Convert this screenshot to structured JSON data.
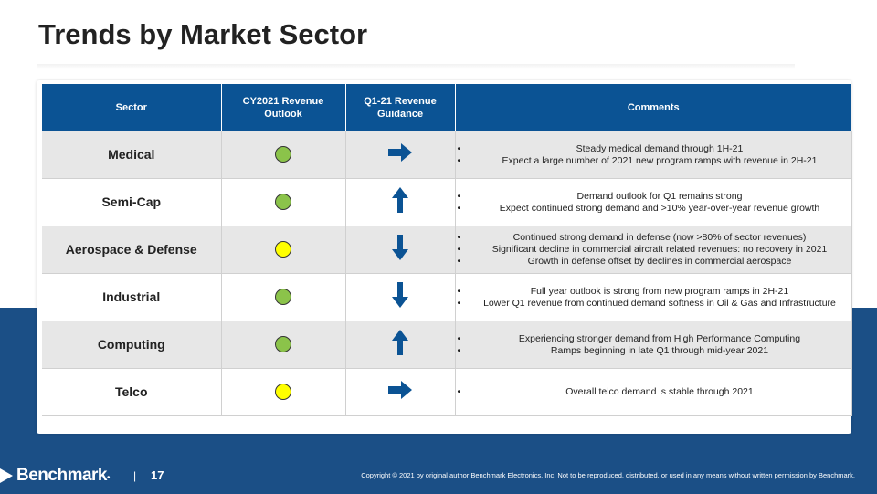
{
  "title": "Trends by Market Sector",
  "table": {
    "headers": [
      "Sector",
      "CY2021 Revenue Outlook",
      "Q1-21 Revenue Guidance",
      "Comments"
    ],
    "rows": [
      {
        "sector": "Medical",
        "outlook": "green",
        "guidance": "right",
        "comments": [
          "Steady medical demand through 1H-21",
          "Expect a large number of 2021 new program ramps with revenue in 2H-21"
        ]
      },
      {
        "sector": "Semi-Cap",
        "outlook": "green",
        "guidance": "up",
        "comments": [
          "Demand outlook for Q1 remains strong",
          "Expect continued strong demand and >10% year-over-year revenue growth"
        ]
      },
      {
        "sector": "Aerospace & Defense",
        "outlook": "yellow",
        "guidance": "down",
        "comments": [
          "Continued strong demand in defense (now >80% of sector revenues)",
          "Significant decline in commercial aircraft related revenues: no recovery in 2021",
          "Growth in defense offset by declines in commercial aerospace"
        ]
      },
      {
        "sector": "Industrial",
        "outlook": "green",
        "guidance": "down",
        "comments": [
          "Full year outlook is strong from new program ramps in 2H-21",
          "Lower Q1 revenue from continued demand softness in Oil & Gas and Infrastructure"
        ]
      },
      {
        "sector": "Computing",
        "outlook": "green",
        "guidance": "up",
        "comments": [
          "Experiencing stronger demand from High Performance Computing",
          "Ramps beginning in late Q1 through mid-year 2021"
        ]
      },
      {
        "sector": "Telco",
        "outlook": "yellow",
        "guidance": "right",
        "comments": [
          "Overall telco demand is stable through 2021"
        ]
      }
    ]
  },
  "colors": {
    "green": "#8bc34a",
    "yellow": "#ffff00",
    "arrow": "#0b5394",
    "header": "#0b5394"
  },
  "footer": {
    "logo": "Benchmark",
    "separator": "|",
    "page_number": "17",
    "copyright": "Copyright © 2021 by original author Benchmark Electronics, Inc. Not to be reproduced, distributed, or used in any means without written permission by Benchmark."
  }
}
